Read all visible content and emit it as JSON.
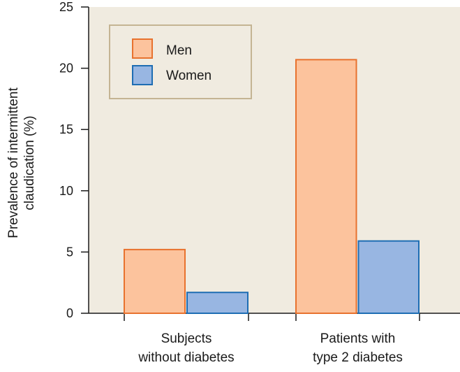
{
  "chart_data": {
    "type": "bar",
    "title": "",
    "categories": [
      [
        "Subjects",
        "without diabetes"
      ],
      [
        "Patients with",
        "type 2 diabetes"
      ]
    ],
    "series": [
      {
        "name": "Men",
        "values": [
          5.2,
          20.7
        ],
        "fill": "#fcc39d",
        "stroke": "#e8722e"
      },
      {
        "name": "Women",
        "values": [
          1.7,
          5.9
        ],
        "fill": "#98b6e2",
        "stroke": "#1e6db3"
      }
    ],
    "ylabel": [
      "Prevalence of intermittent",
      "claudication (%)"
    ],
    "xlabel": "",
    "ylim": [
      0,
      25
    ],
    "yticks": [
      0,
      5,
      10,
      15,
      20,
      25
    ],
    "grid": false,
    "legend_position": "top-left",
    "plot_background": "#f0ebe0",
    "legend_border": "#c4b493"
  }
}
